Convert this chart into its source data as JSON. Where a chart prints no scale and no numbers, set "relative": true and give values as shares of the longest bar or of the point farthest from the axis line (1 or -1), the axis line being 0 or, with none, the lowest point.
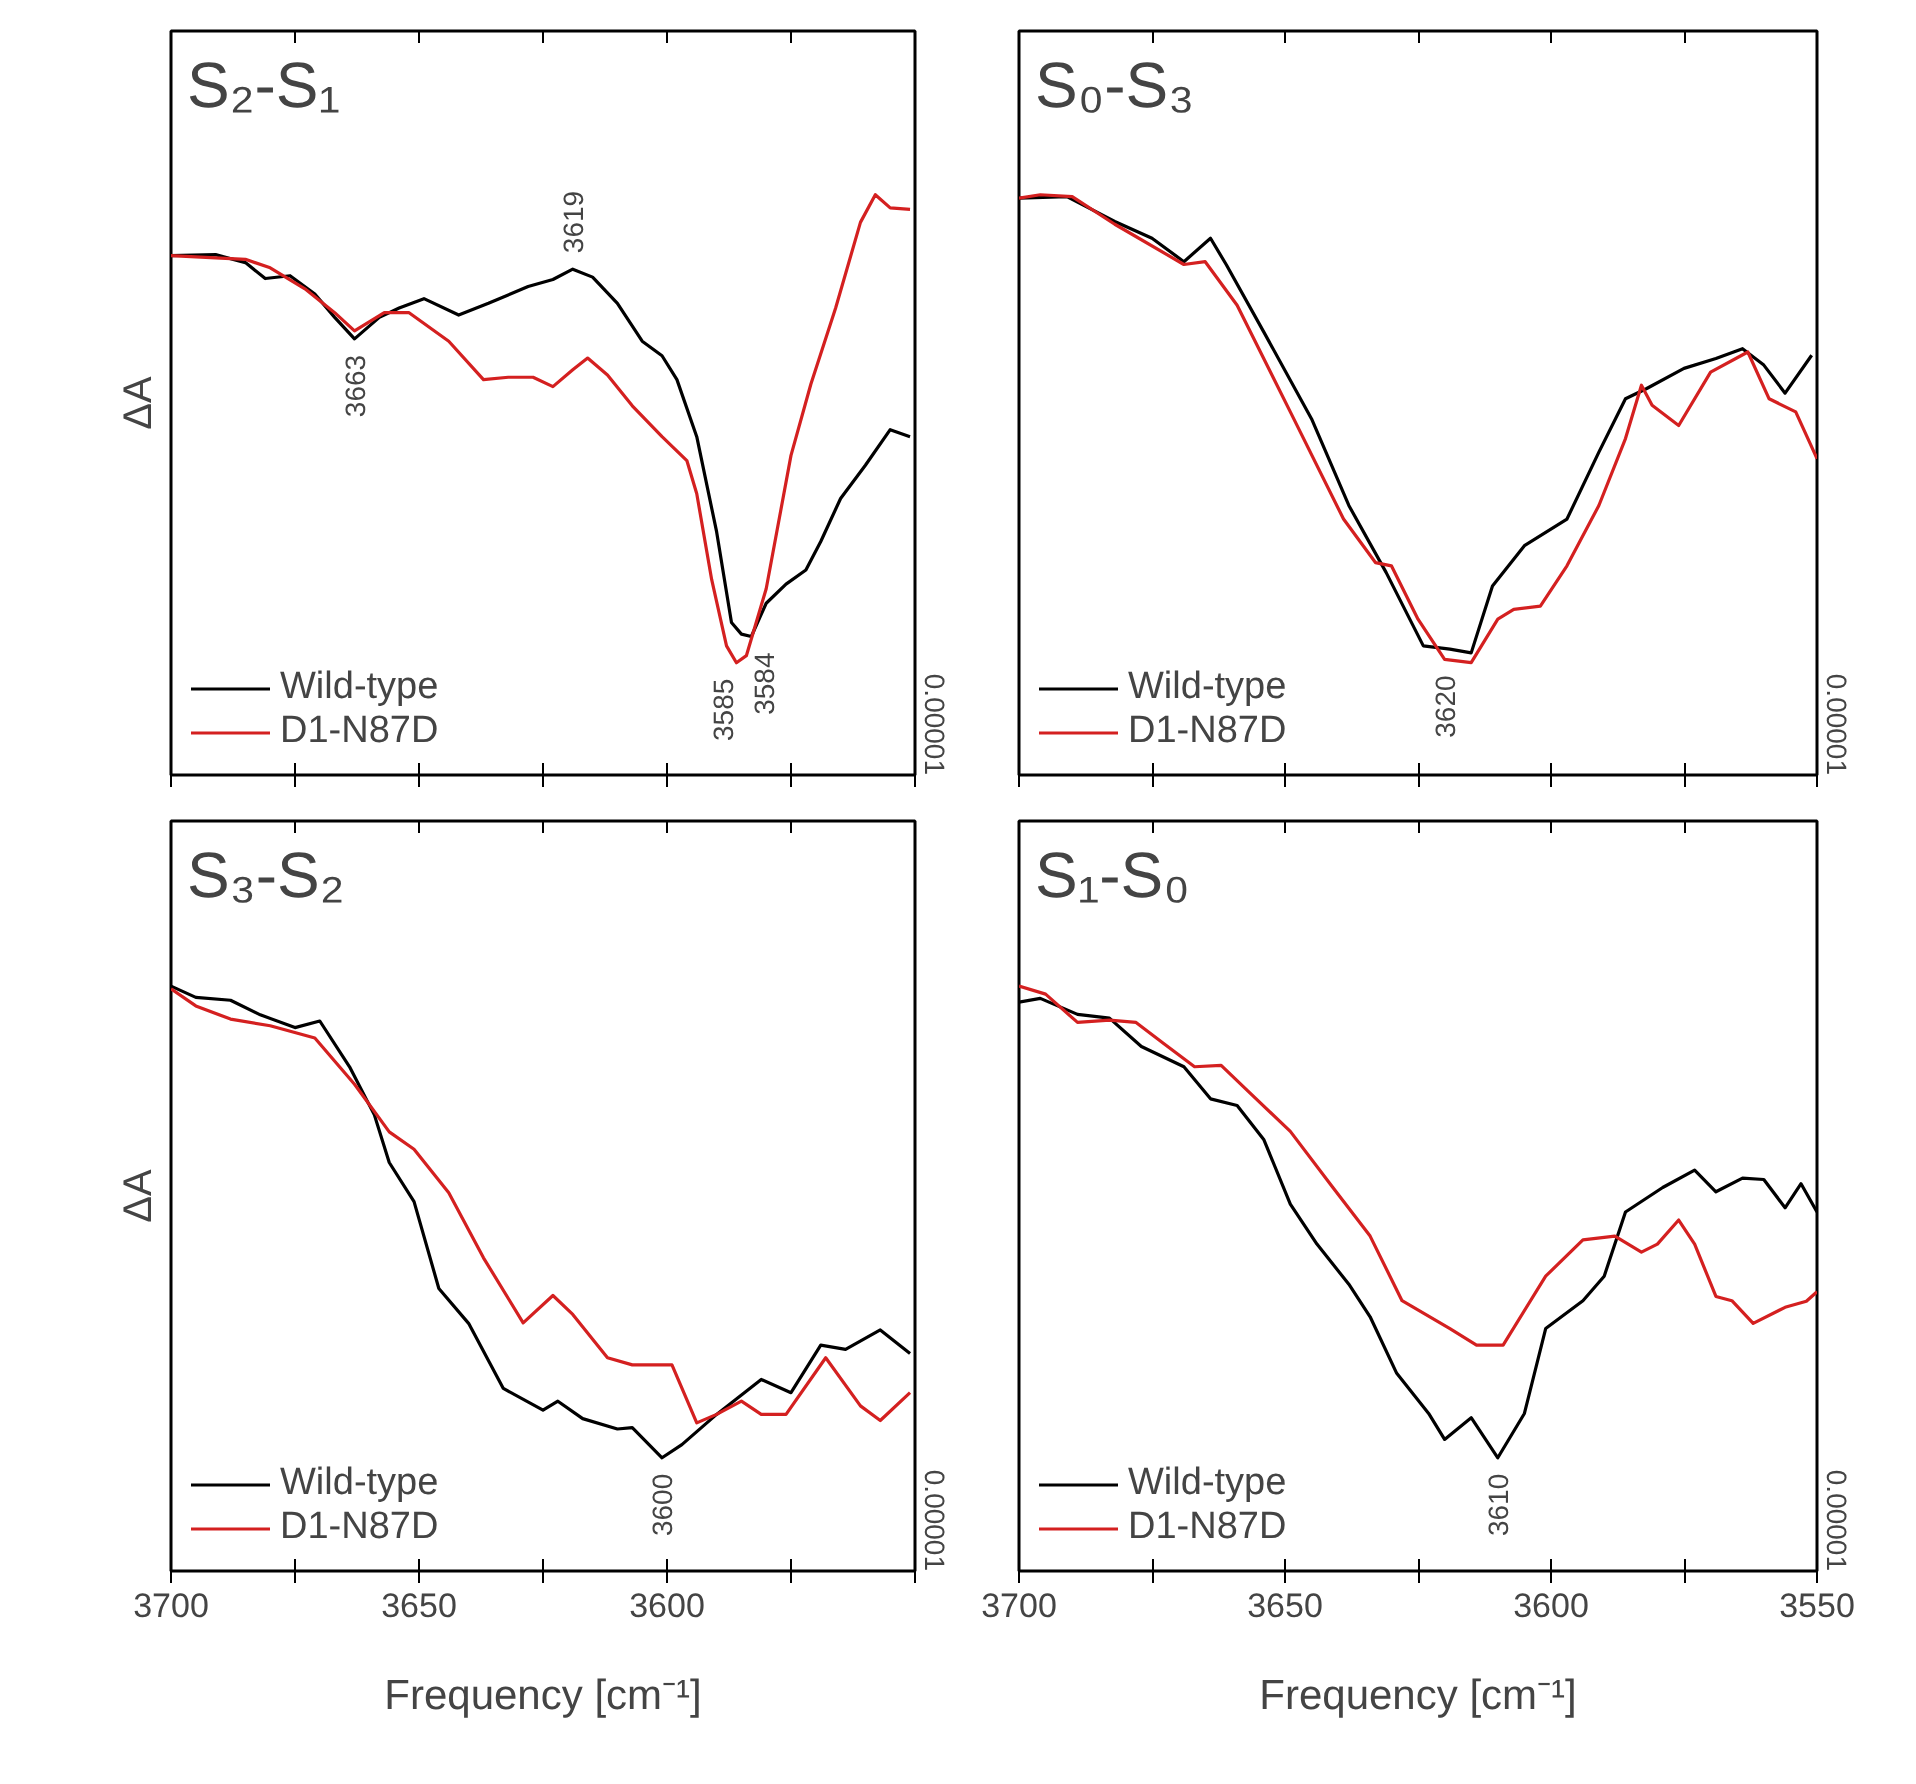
{
  "chart_data": [
    {
      "type": "line",
      "title": "S₂-S₁",
      "ylabel": "ΔA",
      "relative": true,
      "xlim": [
        3700,
        3550
      ],
      "xticks": [
        {
          "value": 3700,
          "label": null
        },
        {
          "value": 3650,
          "label": null
        },
        {
          "value": 3600,
          "label": null
        },
        {
          "value": 3550,
          "label": null
        }
      ],
      "tick_labels": false,
      "legend": "bottom left",
      "grid": false,
      "marker": "none",
      "line_style": "solid",
      "annotations": [
        "0.00001",
        {
          "text": "3663",
          "x": 3663,
          "y": 0.692
        },
        {
          "text": "3619",
          "x": 3619,
          "y": 0.841
        },
        {
          "text": "3585",
          "x": 3585,
          "y": 0
        },
        {
          "text": "3584",
          "x": 3584,
          "y": 0.056
        }
      ],
      "series": [
        {
          "name": "Wild-type",
          "color": "#000000",
          "x": [
            3700,
            3691,
            3685,
            3681,
            3676,
            3671,
            3667,
            3663,
            3658,
            3654,
            3649,
            3642,
            3636,
            3628,
            3623,
            3619,
            3615,
            3610,
            3605,
            3601,
            3598,
            3594,
            3590,
            3587,
            3585,
            3583,
            3580,
            3576,
            3572,
            3569,
            3565,
            3560,
            3555,
            3551
          ],
          "values": [
            0.87,
            0.872,
            0.855,
            0.821,
            0.827,
            0.788,
            0.738,
            0.692,
            0.738,
            0.758,
            0.778,
            0.743,
            0.768,
            0.804,
            0.819,
            0.841,
            0.824,
            0.768,
            0.687,
            0.656,
            0.605,
            0.483,
            0.28,
            0.086,
            0.061,
            0.056,
            0.127,
            0.168,
            0.198,
            0.259,
            0.351,
            0.422,
            0.498,
            0.483
          ]
        },
        {
          "name": "D1-N87D",
          "color": "#d42020",
          "x": [
            3700,
            3685,
            3680,
            3673,
            3667,
            3663,
            3657,
            3652,
            3644,
            3637,
            3632,
            3627,
            3623,
            3619,
            3616,
            3612,
            3607,
            3601,
            3596,
            3594,
            3591,
            3588,
            3586,
            3584,
            3580,
            3575,
            3571,
            3566,
            3561,
            3558,
            3555,
            3551
          ],
          "values": [
            0.87,
            0.862,
            0.844,
            0.799,
            0.748,
            0.709,
            0.748,
            0.748,
            0.687,
            0.605,
            0.61,
            0.61,
            0.59,
            0.626,
            0.651,
            0.615,
            0.549,
            0.483,
            0.432,
            0.361,
            0.178,
            0.036,
            0,
            0.015,
            0.158,
            0.443,
            0.595,
            0.758,
            0.941,
            1,
            0.972,
            0.969
          ]
        }
      ]
    },
    {
      "type": "line",
      "title": "S₀-S₃",
      "relative": true,
      "xlim": [
        3700,
        3550
      ],
      "xticks": [
        {
          "value": 3700,
          "label": null
        },
        {
          "value": 3650,
          "label": null
        },
        {
          "value": 3600,
          "label": null
        },
        {
          "value": 3550,
          "label": null
        }
      ],
      "tick_labels": false,
      "legend": "bottom left",
      "grid": false,
      "marker": "none",
      "line_style": "solid",
      "annotations": [
        "0.00001",
        {
          "text": "3620",
          "x": 3620,
          "y": 0.007
        }
      ],
      "series": [
        {
          "name": "Wild-type",
          "color": "#000000",
          "x": [
            3700,
            3691,
            3682,
            3675,
            3669,
            3664,
            3661,
            3654,
            3645,
            3638,
            3631,
            3624,
            3619,
            3615,
            3611,
            3605,
            3597,
            3591,
            3586,
            3582,
            3575,
            3569,
            3564,
            3560,
            3556,
            3551
          ],
          "values": [
            0.993,
            0.996,
            0.943,
            0.907,
            0.857,
            0.907,
            0.85,
            0.707,
            0.521,
            0.336,
            0.193,
            0.036,
            0.029,
            0.021,
            0.164,
            0.25,
            0.307,
            0.45,
            0.564,
            0.586,
            0.629,
            0.65,
            0.671,
            0.636,
            0.576,
            0.657
          ]
        },
        {
          "name": "D1-N87D",
          "color": "#d42020",
          "x": [
            3700,
            3696,
            3690,
            3682,
            3669,
            3665,
            3659,
            3649,
            3639,
            3633,
            3630,
            3625,
            3620,
            3615,
            3610,
            3607,
            3602,
            3597,
            3591,
            3586,
            3583,
            3581,
            3576,
            3570,
            3563,
            3559,
            3554,
            3550
          ],
          "values": [
            0.993,
            1.0,
            0.996,
            0.937,
            0.851,
            0.857,
            0.764,
            0.536,
            0.307,
            0.214,
            0.207,
            0.093,
            0.007,
            0,
            0.093,
            0.114,
            0.121,
            0.207,
            0.336,
            0.479,
            0.593,
            0.55,
            0.507,
            0.621,
            0.664,
            0.564,
            0.536,
            0.436
          ]
        }
      ]
    },
    {
      "type": "line",
      "title": "S₃-S₂",
      "ylabel": "ΔA",
      "xlabel": "Frequency [cm⁻¹]",
      "relative": true,
      "xlim": [
        3700,
        3550
      ],
      "xticks": [
        3700,
        3650,
        3600,
        {
          "value": 3550,
          "label": null
        }
      ],
      "tick_labels": "x",
      "legend": "bottom left",
      "grid": false,
      "marker": "none",
      "line_style": "solid",
      "annotations": [
        "0.00001",
        {
          "text": "3600",
          "x": 3601,
          "y": 0
        }
      ],
      "series": [
        {
          "name": "Wild-type",
          "color": "#000000",
          "x": [
            3700,
            3695,
            3688,
            3682,
            3675,
            3670,
            3664,
            3659,
            3656,
            3651,
            3646,
            3640,
            3633,
            3625,
            3622,
            3617,
            3610,
            3607,
            3601,
            3597,
            3590,
            3581,
            3575,
            3569,
            3564,
            3557,
            3551
          ],
          "values": [
            1.0,
            0.976,
            0.97,
            0.939,
            0.912,
            0.926,
            0.829,
            0.727,
            0.626,
            0.543,
            0.359,
            0.285,
            0.147,
            0.101,
            0.12,
            0.083,
            0.061,
            0.064,
            0,
            0.028,
            0.092,
            0.166,
            0.138,
            0.239,
            0.23,
            0.271,
            0.221
          ]
        },
        {
          "name": "D1-N87D",
          "color": "#d42020",
          "x": [
            3700,
            3695,
            3688,
            3680,
            3671,
            3663,
            3656,
            3651,
            3644,
            3637,
            3629,
            3623,
            3619,
            3612,
            3607,
            3599,
            3594,
            3590,
            3585,
            3581,
            3576,
            3568,
            3561,
            3557,
            3551
          ],
          "values": [
            0.994,
            0.958,
            0.93,
            0.916,
            0.89,
            0.792,
            0.691,
            0.654,
            0.562,
            0.424,
            0.286,
            0.344,
            0.304,
            0.212,
            0.197,
            0.197,
            0.074,
            0.092,
            0.12,
            0.092,
            0.092,
            0.212,
            0.11,
            0.079,
            0.138
          ]
        }
      ]
    },
    {
      "type": "line",
      "title": "S₁-S₀",
      "xlabel": "Frequency [cm⁻¹]",
      "relative": true,
      "xlim": [
        3700,
        3550
      ],
      "xticks": [
        3700,
        3650,
        3600,
        3550
      ],
      "tick_labels": "x",
      "legend": "bottom left",
      "grid": false,
      "marker": "none",
      "line_style": "solid",
      "annotations": [
        "0.00001",
        {
          "text": "3610",
          "x": 3610,
          "y": 0
        }
      ],
      "series": [
        {
          "name": "Wild-type",
          "color": "#000000",
          "x": [
            3700,
            3696,
            3689,
            3683,
            3677,
            3669,
            3664,
            3659,
            3654,
            3649,
            3644,
            3638,
            3634,
            3629,
            3623,
            3620,
            3615,
            3610,
            3605,
            3601,
            3594,
            3590,
            3586,
            3579,
            3573,
            3569,
            3564,
            3560,
            3556,
            3553,
            3550
          ],
          "values": [
            0.966,
            0.974,
            0.94,
            0.932,
            0.872,
            0.829,
            0.761,
            0.747,
            0.675,
            0.538,
            0.453,
            0.368,
            0.299,
            0.179,
            0.094,
            0.039,
            0.085,
            0,
            0.094,
            0.274,
            0.333,
            0.385,
            0.521,
            0.573,
            0.61,
            0.564,
            0.593,
            0.59,
            0.53,
            0.581,
            0.521
          ]
        },
        {
          "name": "D1-N87D",
          "color": "#d42020",
          "x": [
            3700,
            3695,
            3689,
            3683,
            3678,
            3673,
            3667,
            3662,
            3657,
            3649,
            3641,
            3634,
            3628,
            3619,
            3614,
            3609,
            3601,
            3594,
            3588,
            3583,
            3580,
            3576,
            3573,
            3569,
            3566,
            3562,
            3556,
            3552,
            3550
          ],
          "values": [
            1.0,
            0.983,
            0.923,
            0.928,
            0.923,
            0.88,
            0.829,
            0.832,
            0.778,
            0.692,
            0.573,
            0.47,
            0.333,
            0.274,
            0.239,
            0.239,
            0.385,
            0.462,
            0.47,
            0.436,
            0.453,
            0.504,
            0.453,
            0.342,
            0.333,
            0.285,
            0.319,
            0.332,
            0.352
          ]
        }
      ]
    }
  ]
}
